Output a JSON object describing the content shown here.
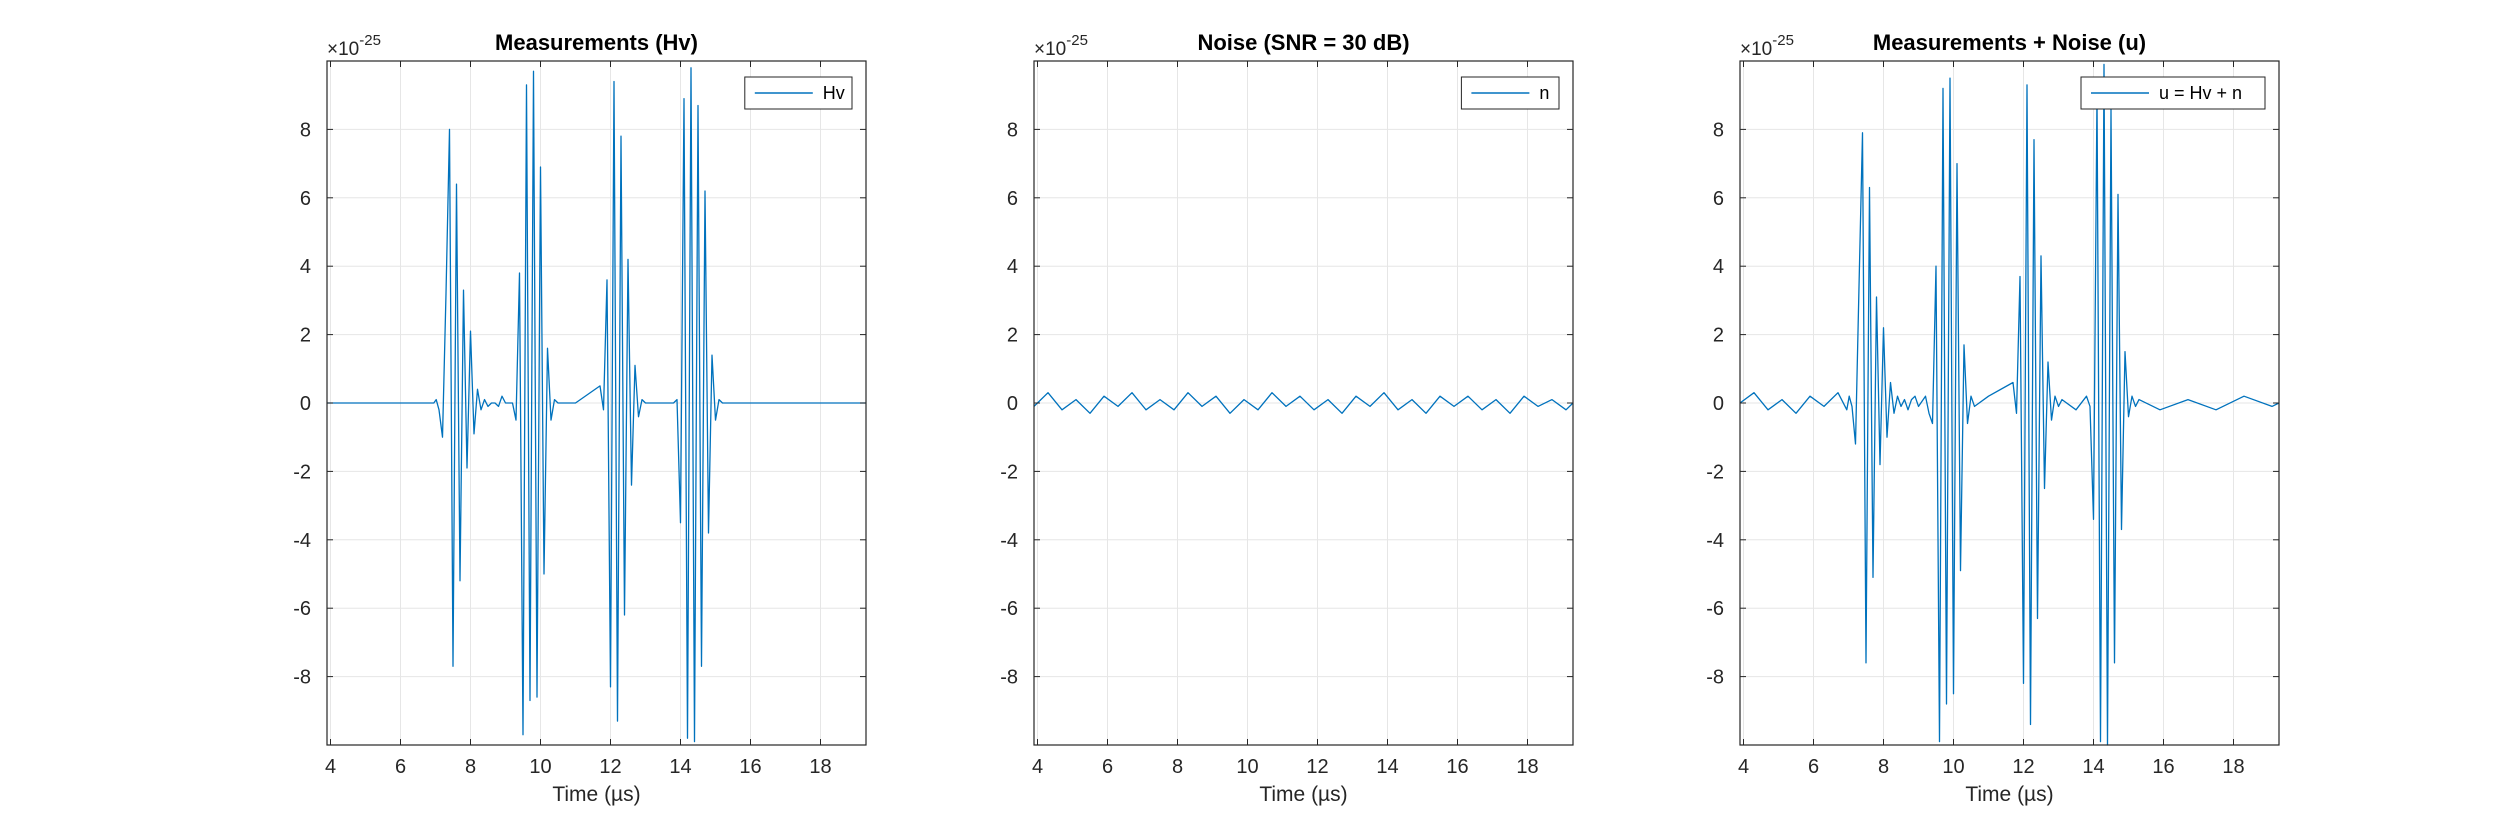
{
  "figure": {
    "background": "#ffffff",
    "line_color": "#0072BD",
    "grid_color": "#e6e6e6",
    "axis_color": "#262626"
  },
  "chart_data": [
    {
      "type": "line",
      "title": "Measurements (Hv)",
      "xlabel": "Time (µs)",
      "ylabel": "",
      "xlim": [
        3.9,
        19.3
      ],
      "ylim": [
        -1e-24,
        1e-24
      ],
      "y_exponent_label": "×10",
      "y_exponent": "-25",
      "xticks": [
        4,
        6,
        8,
        10,
        12,
        14,
        16,
        18
      ],
      "xtick_labels": [
        "4",
        "6",
        "8",
        "10",
        "12",
        "14",
        "16",
        "18"
      ],
      "yticks": [
        -8e-25,
        -6e-25,
        -4e-25,
        -2e-25,
        0,
        2e-25,
        4e-25,
        6e-25,
        8e-25
      ],
      "ytick_labels": [
        "-8",
        "-6",
        "-4",
        "-2",
        "0",
        "2",
        "4",
        "6",
        "8"
      ],
      "grid": true,
      "legend_position": "top-right",
      "series": [
        {
          "name": "Hv",
          "x": [
            3.9,
            6.95,
            7.02,
            7.1,
            7.2,
            7.3,
            7.4,
            7.5,
            7.6,
            7.7,
            7.8,
            7.9,
            8.0,
            8.1,
            8.2,
            8.3,
            8.4,
            8.5,
            8.6,
            8.7,
            8.8,
            8.9,
            9.0,
            9.2,
            9.3,
            9.4,
            9.5,
            9.6,
            9.7,
            9.8,
            9.9,
            10.0,
            10.1,
            10.2,
            10.3,
            10.4,
            10.5,
            10.6,
            11.0,
            11.7,
            11.8,
            11.9,
            12.0,
            12.1,
            12.2,
            12.3,
            12.4,
            12.5,
            12.6,
            12.7,
            12.8,
            12.9,
            13.0,
            13.1,
            13.8,
            13.9,
            14.0,
            14.1,
            14.2,
            14.3,
            14.4,
            14.5,
            14.6,
            14.7,
            14.8,
            14.9,
            15.0,
            15.1,
            15.2,
            15.3,
            19.3
          ],
          "y": [
            0,
            0,
            1e-26,
            -2e-26,
            -1e-25,
            3.2e-25,
            8e-25,
            -7.7e-25,
            6.4e-25,
            -5.2e-25,
            3.3e-25,
            -1.9e-25,
            2.1e-25,
            -9e-26,
            4e-26,
            -2e-26,
            1e-26,
            -1e-26,
            0,
            0,
            -1e-26,
            2e-26,
            0,
            0,
            -5e-26,
            3.8e-25,
            -9.7e-25,
            9.3e-25,
            -8.7e-25,
            9.7e-25,
            -8.6e-25,
            6.9e-25,
            -5e-25,
            1.6e-25,
            -5e-26,
            1e-26,
            0,
            0,
            0,
            5e-26,
            -2e-26,
            3.6e-25,
            -8.3e-25,
            9.4e-25,
            -9.3e-25,
            7.8e-25,
            -6.2e-25,
            4.2e-25,
            -2.4e-25,
            1.1e-25,
            -4e-26,
            1e-26,
            0,
            0,
            0,
            1e-26,
            -3.5e-25,
            8.9e-25,
            -9.8e-25,
            9.8e-25,
            -9.9e-25,
            8.7e-25,
            -7.7e-25,
            6.2e-25,
            -3.8e-25,
            1.4e-25,
            -5e-26,
            1e-26,
            0,
            0,
            0
          ]
        }
      ]
    },
    {
      "type": "line",
      "title": "Noise (SNR = 30 dB)",
      "xlabel": "Time (µs)",
      "ylabel": "",
      "xlim": [
        3.9,
        19.3
      ],
      "ylim": [
        -1e-24,
        1e-24
      ],
      "y_exponent_label": "×10",
      "y_exponent": "-25",
      "xticks": [
        4,
        6,
        8,
        10,
        12,
        14,
        16,
        18
      ],
      "xtick_labels": [
        "4",
        "6",
        "8",
        "10",
        "12",
        "14",
        "16",
        "18"
      ],
      "yticks": [
        -8e-25,
        -6e-25,
        -4e-25,
        -2e-25,
        0,
        2e-25,
        4e-25,
        6e-25,
        8e-25
      ],
      "ytick_labels": [
        "-8",
        "-6",
        "-4",
        "-2",
        "0",
        "2",
        "4",
        "6",
        "8"
      ],
      "grid": true,
      "legend_position": "top-right",
      "series": [
        {
          "name": "n",
          "x": [
            3.9,
            4.3,
            4.7,
            5.1,
            5.5,
            5.9,
            6.3,
            6.7,
            7.1,
            7.5,
            7.9,
            8.3,
            8.7,
            9.1,
            9.5,
            9.9,
            10.3,
            10.7,
            11.1,
            11.5,
            11.9,
            12.3,
            12.7,
            13.1,
            13.5,
            13.9,
            14.3,
            14.7,
            15.1,
            15.5,
            15.9,
            16.3,
            16.7,
            17.1,
            17.5,
            17.9,
            18.3,
            18.7,
            19.1,
            19.3
          ],
          "y": [
            -1e-26,
            3e-26,
            -2e-26,
            1e-26,
            -3e-26,
            2e-26,
            -1e-26,
            3e-26,
            -2e-26,
            1e-26,
            -2e-26,
            3e-26,
            -1e-26,
            2e-26,
            -3e-26,
            1e-26,
            -2e-26,
            3e-26,
            -1e-26,
            2e-26,
            -2e-26,
            1e-26,
            -3e-26,
            2e-26,
            -1e-26,
            3e-26,
            -2e-26,
            1e-26,
            -3e-26,
            2e-26,
            -1e-26,
            2e-26,
            -2e-26,
            1e-26,
            -3e-26,
            2e-26,
            -1e-26,
            1e-26,
            -2e-26,
            0
          ]
        }
      ]
    },
    {
      "type": "line",
      "title": "Measurements + Noise (u)",
      "xlabel": "Time (µs)",
      "ylabel": "",
      "xlim": [
        3.9,
        19.3
      ],
      "ylim": [
        -1e-24,
        1e-24
      ],
      "y_exponent_label": "×10",
      "y_exponent": "-25",
      "xticks": [
        4,
        6,
        8,
        10,
        12,
        14,
        16,
        18
      ],
      "xtick_labels": [
        "4",
        "6",
        "8",
        "10",
        "12",
        "14",
        "16",
        "18"
      ],
      "yticks": [
        -8e-25,
        -6e-25,
        -4e-25,
        -2e-25,
        0,
        2e-25,
        4e-25,
        6e-25,
        8e-25
      ],
      "ytick_labels": [
        "-8",
        "-6",
        "-4",
        "-2",
        "0",
        "2",
        "4",
        "6",
        "8"
      ],
      "grid": true,
      "legend_position": "top-right",
      "series": [
        {
          "name": "u = Hv + n",
          "x": [
            3.9,
            4.3,
            4.7,
            5.1,
            5.5,
            5.9,
            6.3,
            6.7,
            6.95,
            7.02,
            7.1,
            7.2,
            7.3,
            7.4,
            7.5,
            7.6,
            7.7,
            7.8,
            7.9,
            8.0,
            8.1,
            8.2,
            8.3,
            8.4,
            8.5,
            8.6,
            8.7,
            8.8,
            8.9,
            9.0,
            9.2,
            9.3,
            9.4,
            9.5,
            9.6,
            9.7,
            9.8,
            9.9,
            10.0,
            10.1,
            10.2,
            10.3,
            10.4,
            10.5,
            10.6,
            11.0,
            11.7,
            11.8,
            11.9,
            12.0,
            12.1,
            12.2,
            12.3,
            12.4,
            12.5,
            12.6,
            12.7,
            12.8,
            12.9,
            13.0,
            13.1,
            13.5,
            13.8,
            13.9,
            14.0,
            14.1,
            14.2,
            14.3,
            14.4,
            14.5,
            14.6,
            14.7,
            14.8,
            14.9,
            15.0,
            15.1,
            15.2,
            15.3,
            15.9,
            16.7,
            17.5,
            18.3,
            19.1,
            19.3
          ],
          "y": [
            0,
            3e-26,
            -2e-26,
            1e-26,
            -3e-26,
            2e-26,
            -1e-26,
            3e-26,
            -2e-26,
            2e-26,
            -1e-26,
            -1.2e-25,
            3.4e-25,
            7.9e-25,
            -7.6e-25,
            6.3e-25,
            -5.1e-25,
            3.1e-25,
            -1.8e-25,
            2.2e-25,
            -1e-25,
            6e-26,
            -3e-26,
            2e-26,
            -1e-26,
            1e-26,
            -2e-26,
            1e-26,
            2e-26,
            -1e-26,
            2e-26,
            -3e-26,
            -6e-26,
            4e-25,
            -9.9e-25,
            9.2e-25,
            -8.8e-25,
            9.5e-25,
            -8.5e-25,
            7e-25,
            -4.9e-25,
            1.7e-25,
            -6e-26,
            2e-26,
            -1e-26,
            2e-26,
            6e-26,
            -3e-26,
            3.7e-25,
            -8.2e-25,
            9.3e-25,
            -9.4e-25,
            7.7e-25,
            -6.3e-25,
            4.3e-25,
            -2.5e-25,
            1.2e-25,
            -5e-26,
            2e-26,
            -1e-26,
            1e-26,
            -2e-26,
            2e-26,
            -1e-26,
            -3.4e-25,
            9e-25,
            -9.9e-25,
            9.9e-25,
            -1e-24,
            8.6e-25,
            -7.6e-25,
            6.1e-25,
            -3.7e-25,
            1.5e-25,
            -4e-26,
            2e-26,
            -1e-26,
            1e-26,
            -2e-26,
            1e-26,
            -2e-26,
            2e-26,
            -1e-26,
            0
          ]
        }
      ]
    }
  ]
}
